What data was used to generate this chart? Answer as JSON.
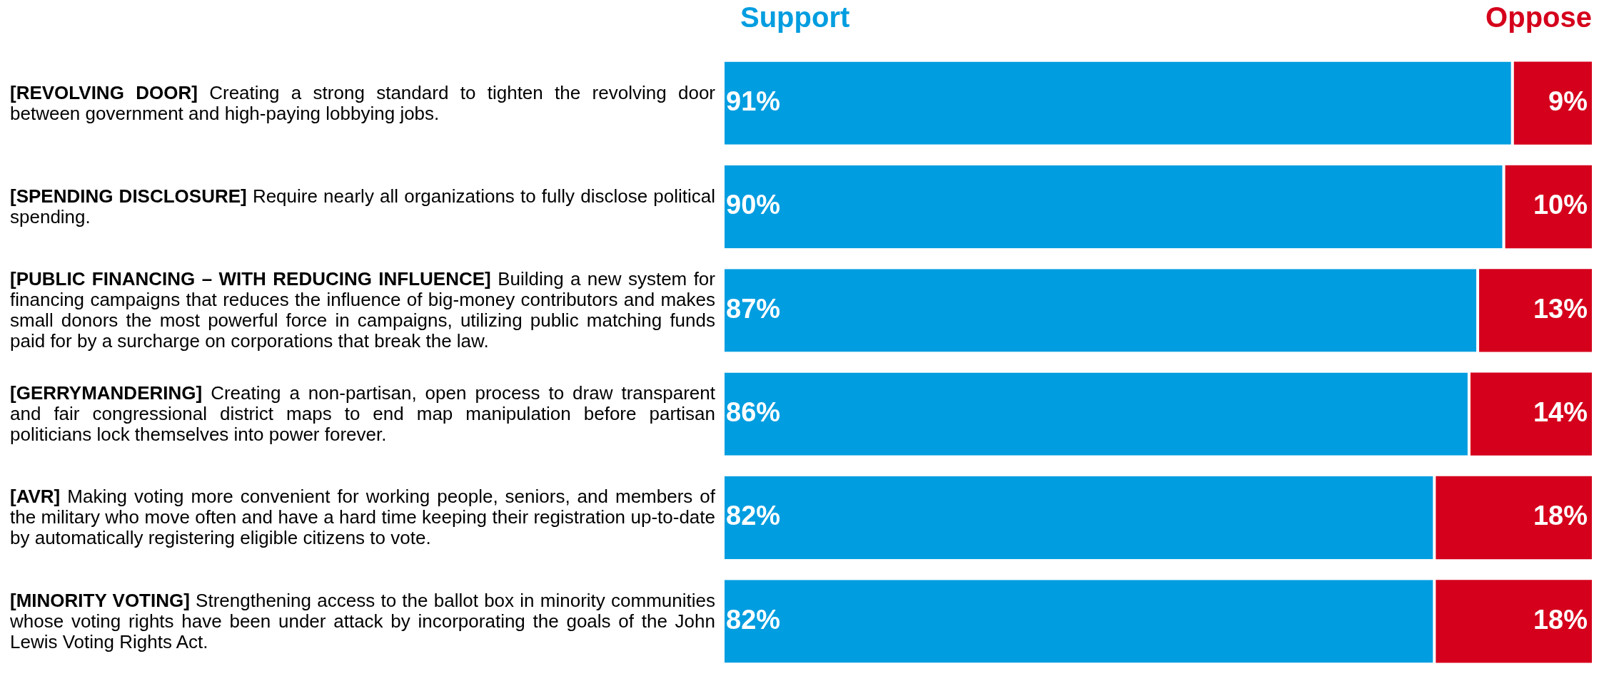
{
  "chart_data": {
    "type": "bar",
    "orientation": "horizontal",
    "stacked": true,
    "legend": "top",
    "xlim": [
      0,
      100
    ],
    "categories": [
      "[REVOLVING DOOR] Creating a strong standard to tighten the revolving door between government and high-paying lobbying jobs.",
      "[SPENDING DISCLOSURE] Require nearly all organizations to fully disclose political spending.",
      "[PUBLIC FINANCING – WITH REDUCING INFLUENCE] Building a new system for financing campaigns that reduces the influence of big-money contributors and makes small donors the most powerful force in campaigns, utilizing public matching funds paid for by a surcharge on corporations that break the law.",
      "[GERRYMANDERING] Creating a non-partisan, open process to draw transparent and fair congressional district maps to end map manipulation before partisan politicians lock themselves into power forever.",
      "[AVR] Making voting more convenient for working people, seniors, and members of the military who move often and have a hard time keeping their registration up-to-date by automatically registering eligible citizens to vote.",
      "[MINORITY VOTING] Strengthening access to the ballot box in minority communities whose voting rights have been under attack by incorporating the goals of the John Lewis Voting Rights Act."
    ],
    "series": [
      {
        "name": "Support",
        "color": "#009de0",
        "values": [
          91,
          90,
          87,
          86,
          82,
          82
        ],
        "value_labels": [
          "91%",
          "90%",
          "87%",
          "86%",
          "82%",
          "82%"
        ]
      },
      {
        "name": "Oppose",
        "color": "#d5001c",
        "values": [
          9,
          10,
          13,
          14,
          18,
          18
        ],
        "value_labels": [
          "9%",
          "10%",
          "13%",
          "14%",
          "18%",
          "18%"
        ]
      }
    ]
  }
}
